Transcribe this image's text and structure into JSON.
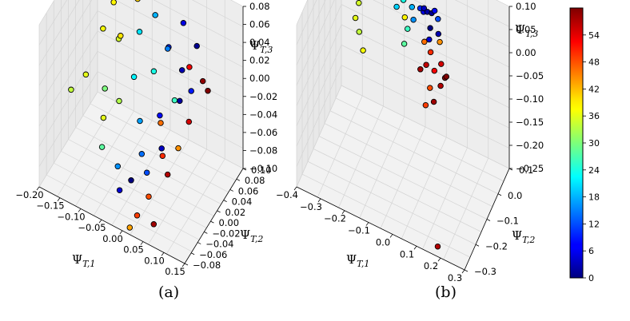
{
  "chart_data": [
    {
      "type": "scatter",
      "subplot": "(a)",
      "xlabel": "Ψ_{T,1}",
      "ylabel": "Ψ_{T,2}",
      "zlabel": "Ψ_{T,3}",
      "x_ticks": [
        "−0.20",
        "−0.15",
        "−0.10",
        "−0.05",
        "0.00",
        "0.05",
        "0.10",
        "0.15"
      ],
      "y_ticks": [
        "−0.08",
        "−0.06",
        "−0.04",
        "−0.02",
        "0.00",
        "0.02",
        "0.04",
        "0.06",
        "0.08",
        "0.10"
      ],
      "z_ticks": [
        "0.08",
        "0.06",
        "0.04",
        "0.02",
        "0.00",
        "−0.02",
        "−0.04",
        "−0.06",
        "−0.08",
        "−0.10"
      ],
      "xlim": [
        -0.2,
        0.15
      ],
      "ylim": [
        -0.08,
        0.1
      ],
      "zlim": [
        -0.1,
        0.08
      ],
      "points": [
        {
          "x": -0.17,
          "y": -0.02,
          "z": -0.02,
          "c": 34
        },
        {
          "x": -0.15,
          "y": 0.0,
          "z": -0.01,
          "c": 36
        },
        {
          "x": -0.14,
          "y": 0.04,
          "z": 0.02,
          "c": 37
        },
        {
          "x": -0.12,
          "y": 0.02,
          "z": -0.03,
          "c": 30
        },
        {
          "x": -0.13,
          "y": 0.06,
          "z": 0.04,
          "c": 38
        },
        {
          "x": -0.11,
          "y": 0.05,
          "z": 0.01,
          "c": 35
        },
        {
          "x": -0.1,
          "y": -0.01,
          "z": -0.04,
          "c": 36
        },
        {
          "x": -0.09,
          "y": 0.03,
          "z": 0.03,
          "c": 39
        },
        {
          "x": -0.08,
          "y": 0.07,
          "z": 0.05,
          "c": 40
        },
        {
          "x": -0.07,
          "y": 0.0,
          "z": -0.02,
          "c": 33
        },
        {
          "x": -0.1,
          "y": 0.08,
          "z": 0.06,
          "c": 41
        },
        {
          "x": -0.06,
          "y": 0.05,
          "z": 0.03,
          "c": 21
        },
        {
          "x": -0.05,
          "y": 0.02,
          "z": 0.0,
          "c": 22
        },
        {
          "x": -0.04,
          "y": 0.08,
          "z": 0.06,
          "c": 20
        },
        {
          "x": -0.03,
          "y": 0.06,
          "z": 0.05,
          "c": 18
        },
        {
          "x": -0.02,
          "y": 0.0,
          "z": -0.03,
          "c": 17
        },
        {
          "x": -0.05,
          "y": -0.03,
          "z": -0.07,
          "c": 16
        },
        {
          "x": -0.01,
          "y": 0.03,
          "z": 0.01,
          "c": 24
        },
        {
          "x": 0.0,
          "y": -0.02,
          "z": -0.05,
          "c": 14
        },
        {
          "x": 0.01,
          "y": 0.05,
          "z": 0.03,
          "c": 10
        },
        {
          "x": 0.02,
          "y": 0.01,
          "z": -0.02,
          "c": 8
        },
        {
          "x": 0.03,
          "y": 0.07,
          "z": 0.05,
          "c": 6
        },
        {
          "x": 0.04,
          "y": -0.01,
          "z": -0.04,
          "c": 4
        },
        {
          "x": -0.03,
          "y": -0.05,
          "z": -0.08,
          "c": 5
        },
        {
          "x": 0.05,
          "y": 0.04,
          "z": 0.02,
          "c": 3
        },
        {
          "x": 0.06,
          "y": 0.02,
          "z": 0.0,
          "c": 2
        },
        {
          "x": 0.07,
          "y": 0.06,
          "z": 0.04,
          "c": 1
        },
        {
          "x": -0.01,
          "y": -0.04,
          "z": -0.07,
          "c": 0
        },
        {
          "x": 0.02,
          "y": -0.03,
          "z": -0.06,
          "c": 12
        },
        {
          "x": 0.08,
          "y": 0.03,
          "z": 0.01,
          "c": 9
        },
        {
          "x": 0.03,
          "y": 0.0,
          "z": -0.02,
          "c": 46
        },
        {
          "x": 0.05,
          "y": -0.02,
          "z": -0.04,
          "c": 50
        },
        {
          "x": 0.06,
          "y": 0.05,
          "z": 0.02,
          "c": 53
        },
        {
          "x": 0.09,
          "y": 0.01,
          "z": -0.01,
          "c": 55
        },
        {
          "x": 0.07,
          "y": -0.03,
          "z": -0.05,
          "c": 57
        },
        {
          "x": 0.04,
          "y": -0.05,
          "z": -0.07,
          "c": 48
        },
        {
          "x": 0.1,
          "y": 0.04,
          "z": 0.02,
          "c": 59
        },
        {
          "x": 0.08,
          "y": -0.01,
          "z": -0.03,
          "c": 44
        },
        {
          "x": 0.02,
          "y": -0.06,
          "z": -0.09,
          "c": 49
        },
        {
          "x": 0.06,
          "y": -0.06,
          "z": -0.09,
          "c": 58
        },
        {
          "x": 0.01,
          "y": -0.07,
          "z": -0.1,
          "c": 43
        },
        {
          "x": 0.12,
          "y": 0.03,
          "z": 0.02,
          "c": 60
        },
        {
          "x": 0.04,
          "y": 0.03,
          "z": -0.01,
          "c": 26
        },
        {
          "x": -0.08,
          "y": -0.04,
          "z": -0.05,
          "c": 28
        },
        {
          "x": 0.0,
          "y": 0.06,
          "z": 0.02,
          "c": 15
        }
      ]
    },
    {
      "type": "scatter",
      "subplot": "(b)",
      "xlabel": "Ψ_{T,1}",
      "ylabel": "Ψ_{T,2}",
      "zlabel": "Ψ_{T,3}",
      "x_ticks": [
        "−0.4",
        "−0.3",
        "−0.2",
        "−0.1",
        "0.0",
        "0.1",
        "0.2",
        "0.3"
      ],
      "y_ticks": [
        "−0.3",
        "−0.2",
        "−0.1",
        "0.0",
        "0.1"
      ],
      "z_ticks": [
        "0.10",
        "0.05",
        "0.00",
        "−0.05",
        "−0.10",
        "−0.15",
        "−0.20",
        "−0.25"
      ],
      "xlim": [
        -0.4,
        0.3
      ],
      "ylim": [
        -0.3,
        0.15
      ],
      "zlim": [
        -0.25,
        0.1
      ],
      "points": [
        {
          "x": -0.3,
          "y": 0.05,
          "z": -0.03,
          "c": 36
        },
        {
          "x": -0.29,
          "y": 0.06,
          "z": 0.0,
          "c": 35
        },
        {
          "x": -0.28,
          "y": 0.04,
          "z": -0.05,
          "c": 34
        },
        {
          "x": -0.27,
          "y": 0.07,
          "z": 0.02,
          "c": 33
        },
        {
          "x": -0.26,
          "y": 0.03,
          "z": -0.08,
          "c": 37
        },
        {
          "x": -0.25,
          "y": 0.08,
          "z": 0.03,
          "c": 30
        },
        {
          "x": -0.22,
          "y": 0.05,
          "z": 0.05,
          "c": 38
        },
        {
          "x": -0.2,
          "y": 0.06,
          "z": 0.06,
          "c": 40
        },
        {
          "x": -0.18,
          "y": 0.04,
          "z": 0.07,
          "c": 41
        },
        {
          "x": -0.16,
          "y": 0.05,
          "z": 0.06,
          "c": 42
        },
        {
          "x": -0.14,
          "y": 0.07,
          "z": 0.07,
          "c": 39
        },
        {
          "x": -0.12,
          "y": 0.03,
          "z": 0.05,
          "c": 20
        },
        {
          "x": -0.1,
          "y": 0.05,
          "z": 0.06,
          "c": 24
        },
        {
          "x": -0.08,
          "y": 0.06,
          "z": 0.08,
          "c": 22
        },
        {
          "x": -0.06,
          "y": 0.04,
          "z": 0.06,
          "c": 18
        },
        {
          "x": -0.05,
          "y": 0.03,
          "z": 0.04,
          "c": 16
        },
        {
          "x": -0.04,
          "y": 0.07,
          "z": 0.08,
          "c": 14
        },
        {
          "x": -0.03,
          "y": 0.05,
          "z": 0.06,
          "c": 10
        },
        {
          "x": -0.02,
          "y": 0.06,
          "z": 0.05,
          "c": 6
        },
        {
          "x": -0.01,
          "y": 0.04,
          "z": 0.07,
          "c": 4
        },
        {
          "x": 0.0,
          "y": 0.05,
          "z": 0.06,
          "c": 2
        },
        {
          "x": 0.01,
          "y": 0.07,
          "z": 0.05,
          "c": 1
        },
        {
          "x": 0.02,
          "y": 0.03,
          "z": 0.04,
          "c": 0
        },
        {
          "x": 0.03,
          "y": 0.05,
          "z": 0.07,
          "c": 8
        },
        {
          "x": 0.04,
          "y": 0.06,
          "z": 0.05,
          "c": 12
        },
        {
          "x": 0.02,
          "y": 0.02,
          "z": 0.02,
          "c": 5
        },
        {
          "x": 0.05,
          "y": 0.04,
          "z": 0.03,
          "c": 3
        },
        {
          "x": -0.07,
          "y": 0.02,
          "z": 0.02,
          "c": 26
        },
        {
          "x": -0.09,
          "y": 0.04,
          "z": 0.03,
          "c": 38
        },
        {
          "x": 0.0,
          "y": 0.02,
          "z": 0.01,
          "c": 46
        },
        {
          "x": 0.03,
          "y": 0.01,
          "z": 0.0,
          "c": 50
        },
        {
          "x": 0.06,
          "y": 0.03,
          "z": 0.02,
          "c": 44
        },
        {
          "x": 0.05,
          "y": 0.0,
          "z": -0.03,
          "c": 53
        },
        {
          "x": 0.07,
          "y": 0.02,
          "z": -0.02,
          "c": 55
        },
        {
          "x": 0.08,
          "y": -0.01,
          "z": -0.05,
          "c": 57
        },
        {
          "x": 0.04,
          "y": -0.02,
          "z": -0.06,
          "c": 48
        },
        {
          "x": 0.09,
          "y": 0.01,
          "z": -0.04,
          "c": 59
        },
        {
          "x": 0.06,
          "y": -0.03,
          "z": -0.08,
          "c": 58
        },
        {
          "x": 0.03,
          "y": -0.04,
          "z": -0.09,
          "c": 49
        },
        {
          "x": 0.1,
          "y": 0.0,
          "z": -0.03,
          "c": 60
        },
        {
          "x": -0.08,
          "y": 0.01,
          "z": -0.01,
          "c": 28
        },
        {
          "x": 0.02,
          "y": -0.01,
          "z": -0.02,
          "c": 56
        },
        {
          "x": 0.0,
          "y": -0.02,
          "z": -0.03,
          "c": 58
        },
        {
          "x": 0.18,
          "y": -0.28,
          "z": -0.24,
          "c": 57
        }
      ]
    }
  ],
  "colorbar": {
    "ticks": [
      "0",
      "6",
      "12",
      "18",
      "24",
      "30",
      "36",
      "42",
      "48",
      "54"
    ],
    "min": 0,
    "max": 60
  },
  "captions": [
    "(a)",
    "(b)"
  ]
}
